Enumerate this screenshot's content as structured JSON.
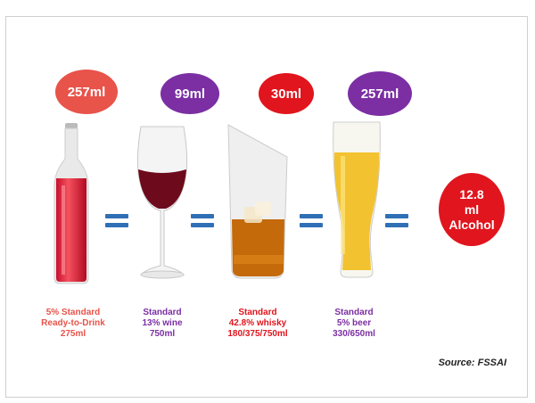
{
  "ovals": [
    {
      "label": "257ml",
      "color": "#e8534a"
    },
    {
      "label": "99ml",
      "color": "#7b2fa3"
    },
    {
      "label": "30ml",
      "color": "#e0151d"
    },
    {
      "label": "257ml",
      "color": "#7b2fa3"
    }
  ],
  "result": {
    "line1": "12.8",
    "line2": "ml",
    "line3": "Alcohol",
    "color": "#e0151d"
  },
  "captions": [
    {
      "lines": [
        "5% Standard",
        "Ready-to-Drink",
        "275ml"
      ],
      "color": "#e8534a"
    },
    {
      "lines": [
        "Standard",
        "13% wine",
        "750ml"
      ],
      "color": "#7b2fa3"
    },
    {
      "lines": [
        "Standard",
        "42.8% whisky",
        "180/375/750ml"
      ],
      "color": "#e0151d"
    },
    {
      "lines": [
        "Standard",
        "5% beer",
        "330/650ml"
      ],
      "color": "#7b2fa3"
    }
  ],
  "source": "Source: FSSAI",
  "icons": [
    "rtd-bottle-icon",
    "wine-glass-icon",
    "whisky-glass-icon",
    "beer-glass-icon",
    "equals-icon"
  ]
}
